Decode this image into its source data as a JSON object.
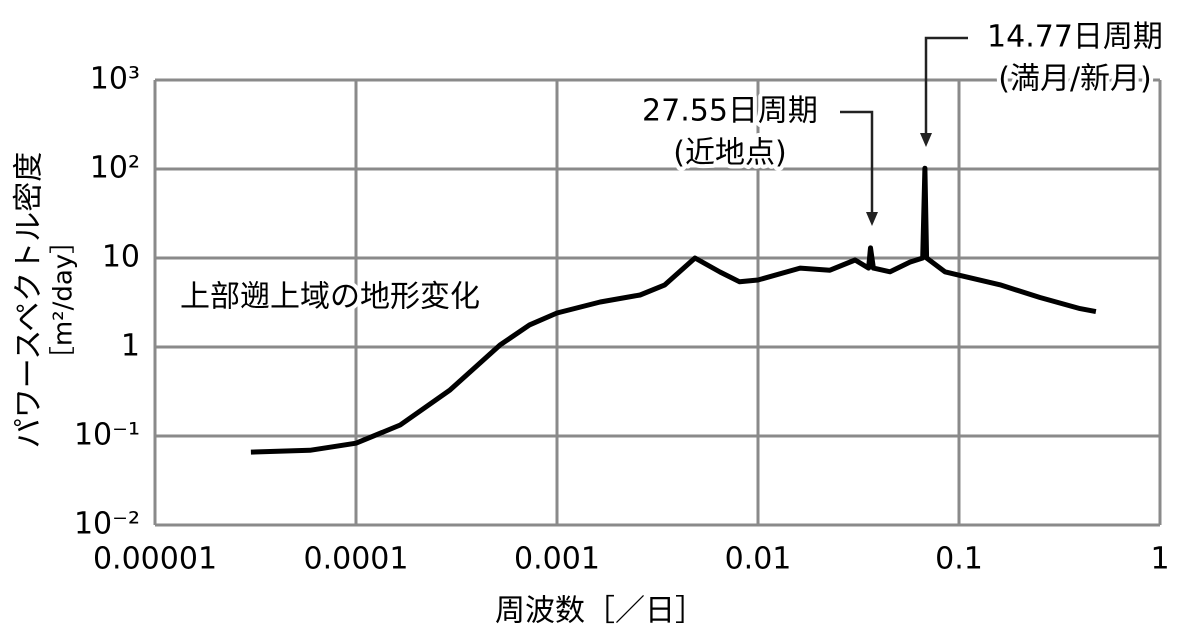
{
  "chart_data": {
    "type": "line",
    "x_label": "周波数［／日］",
    "y_label": [
      "パワースペクトル密度",
      "［m²/day］"
    ],
    "x": [
      3e-05,
      5.9e-05,
      0.0001,
      0.000166,
      0.000294,
      0.00052,
      0.00073,
      0.001,
      0.00164,
      0.00259,
      0.00344,
      0.00486,
      0.00647,
      0.0081,
      0.01,
      0.0162,
      0.0228,
      0.0304,
      0.0355,
      0.0363,
      0.0375,
      0.0454,
      0.057,
      0.066,
      0.0677,
      0.069,
      0.0851,
      0.1,
      0.16,
      0.253,
      0.4,
      0.48
    ],
    "values": [
      0.066,
      0.069,
      0.083,
      0.133,
      0.33,
      1.05,
      1.77,
      2.41,
      3.2,
      3.84,
      4.98,
      10,
      6.97,
      5.4,
      5.66,
      7.7,
      7.3,
      9.5,
      7.7,
      13,
      7.7,
      7.0,
      9.0,
      10,
      102,
      10,
      7,
      6.4,
      5.0,
      3.6,
      2.7,
      2.5
    ],
    "color": "#000000",
    "xlim": [
      1e-05,
      1
    ],
    "ylim": [
      0.01,
      1000
    ],
    "xticks": [
      1e-05,
      0.0001,
      0.001,
      0.01,
      0.1,
      1
    ],
    "yticks": [
      {
        "value": 0.01,
        "label": "10⁻²"
      },
      {
        "value": 0.1,
        "label": "10⁻¹"
      },
      1,
      10,
      {
        "value": 100,
        "label": "10²"
      },
      {
        "value": 1000,
        "label": "10³"
      }
    ],
    "log_x": true,
    "log_y": true,
    "grid": true,
    "annotations": [
      {
        "lines": [
          "27.55日周期",
          "(近地点)"
        ]
      },
      {
        "lines": [
          "14.77日周期",
          "(満月/新月)"
        ]
      },
      {
        "lines": [
          "上部遡上域の地形変化"
        ]
      }
    ]
  }
}
